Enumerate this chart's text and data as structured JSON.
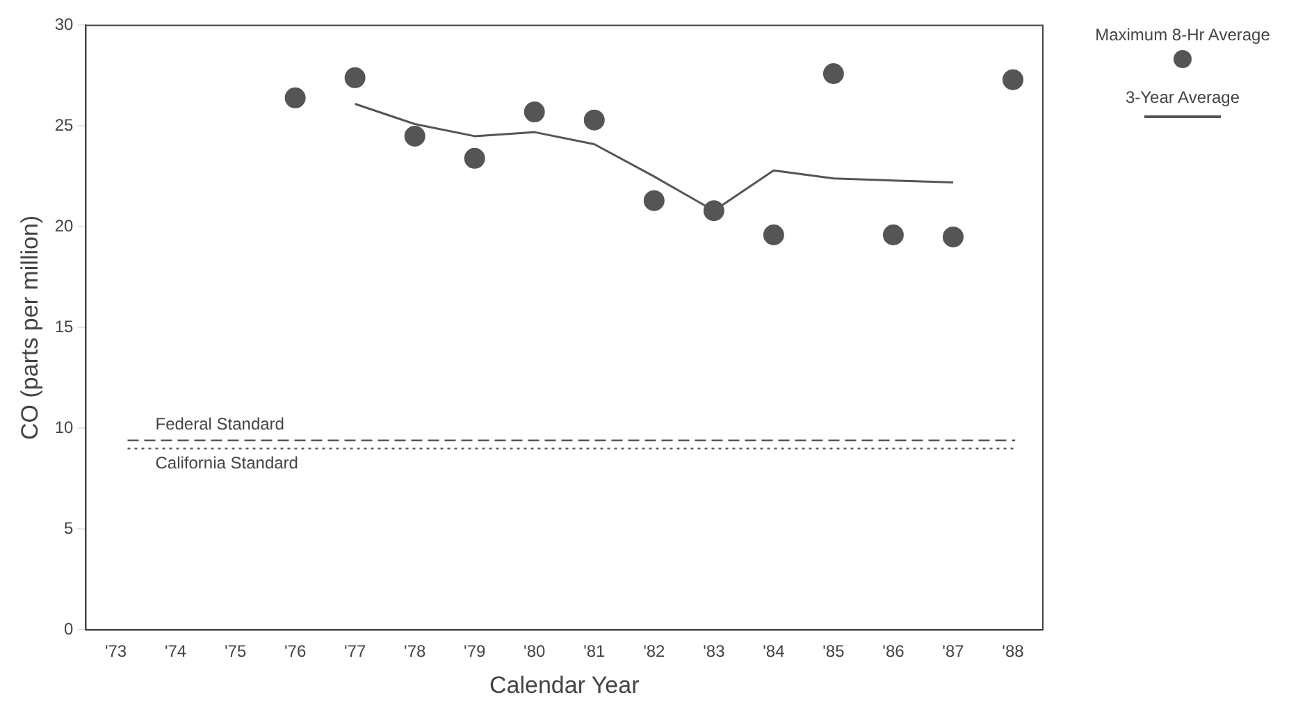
{
  "chart_data": {
    "type": "scatter",
    "xlabel": "Calendar Year",
    "ylabel": "CO (parts per million)",
    "categories": [
      "'73",
      "'74",
      "'75",
      "'76",
      "'77",
      "'78",
      "'79",
      "'80",
      "'81",
      "'82",
      "'83",
      "'84",
      "'85",
      "'86",
      "'87",
      "'88"
    ],
    "series": [
      {
        "name": "Maximum 8-Hr Average",
        "color": "#555555",
        "marker": "circle",
        "values": [
          null,
          null,
          null,
          26.4,
          27.4,
          24.5,
          23.4,
          25.7,
          25.3,
          21.3,
          20.8,
          19.6,
          27.6,
          19.6,
          19.5,
          27.3
        ]
      },
      {
        "name": "3-Year Average",
        "type": "line",
        "color": "#555555",
        "marker": "none",
        "line_style": "solid",
        "values": [
          null,
          null,
          null,
          null,
          26.1,
          25.1,
          24.5,
          24.7,
          24.1,
          22.5,
          20.8,
          22.8,
          22.4,
          22.3,
          22.2,
          null
        ]
      }
    ],
    "ylim": [
      0,
      30
    ],
    "yticks": [
      0,
      5,
      10,
      15,
      20,
      25,
      30
    ],
    "grid": false,
    "legend": "top right",
    "ref_lines": [
      {
        "axis": "y",
        "value": 9.4,
        "label": "Federal Standard",
        "color": "#555555",
        "line_style": "dashed"
      },
      {
        "axis": "y",
        "value": 9.0,
        "label": "California Standard",
        "color": "#555555",
        "line_style": "dotted"
      }
    ]
  }
}
